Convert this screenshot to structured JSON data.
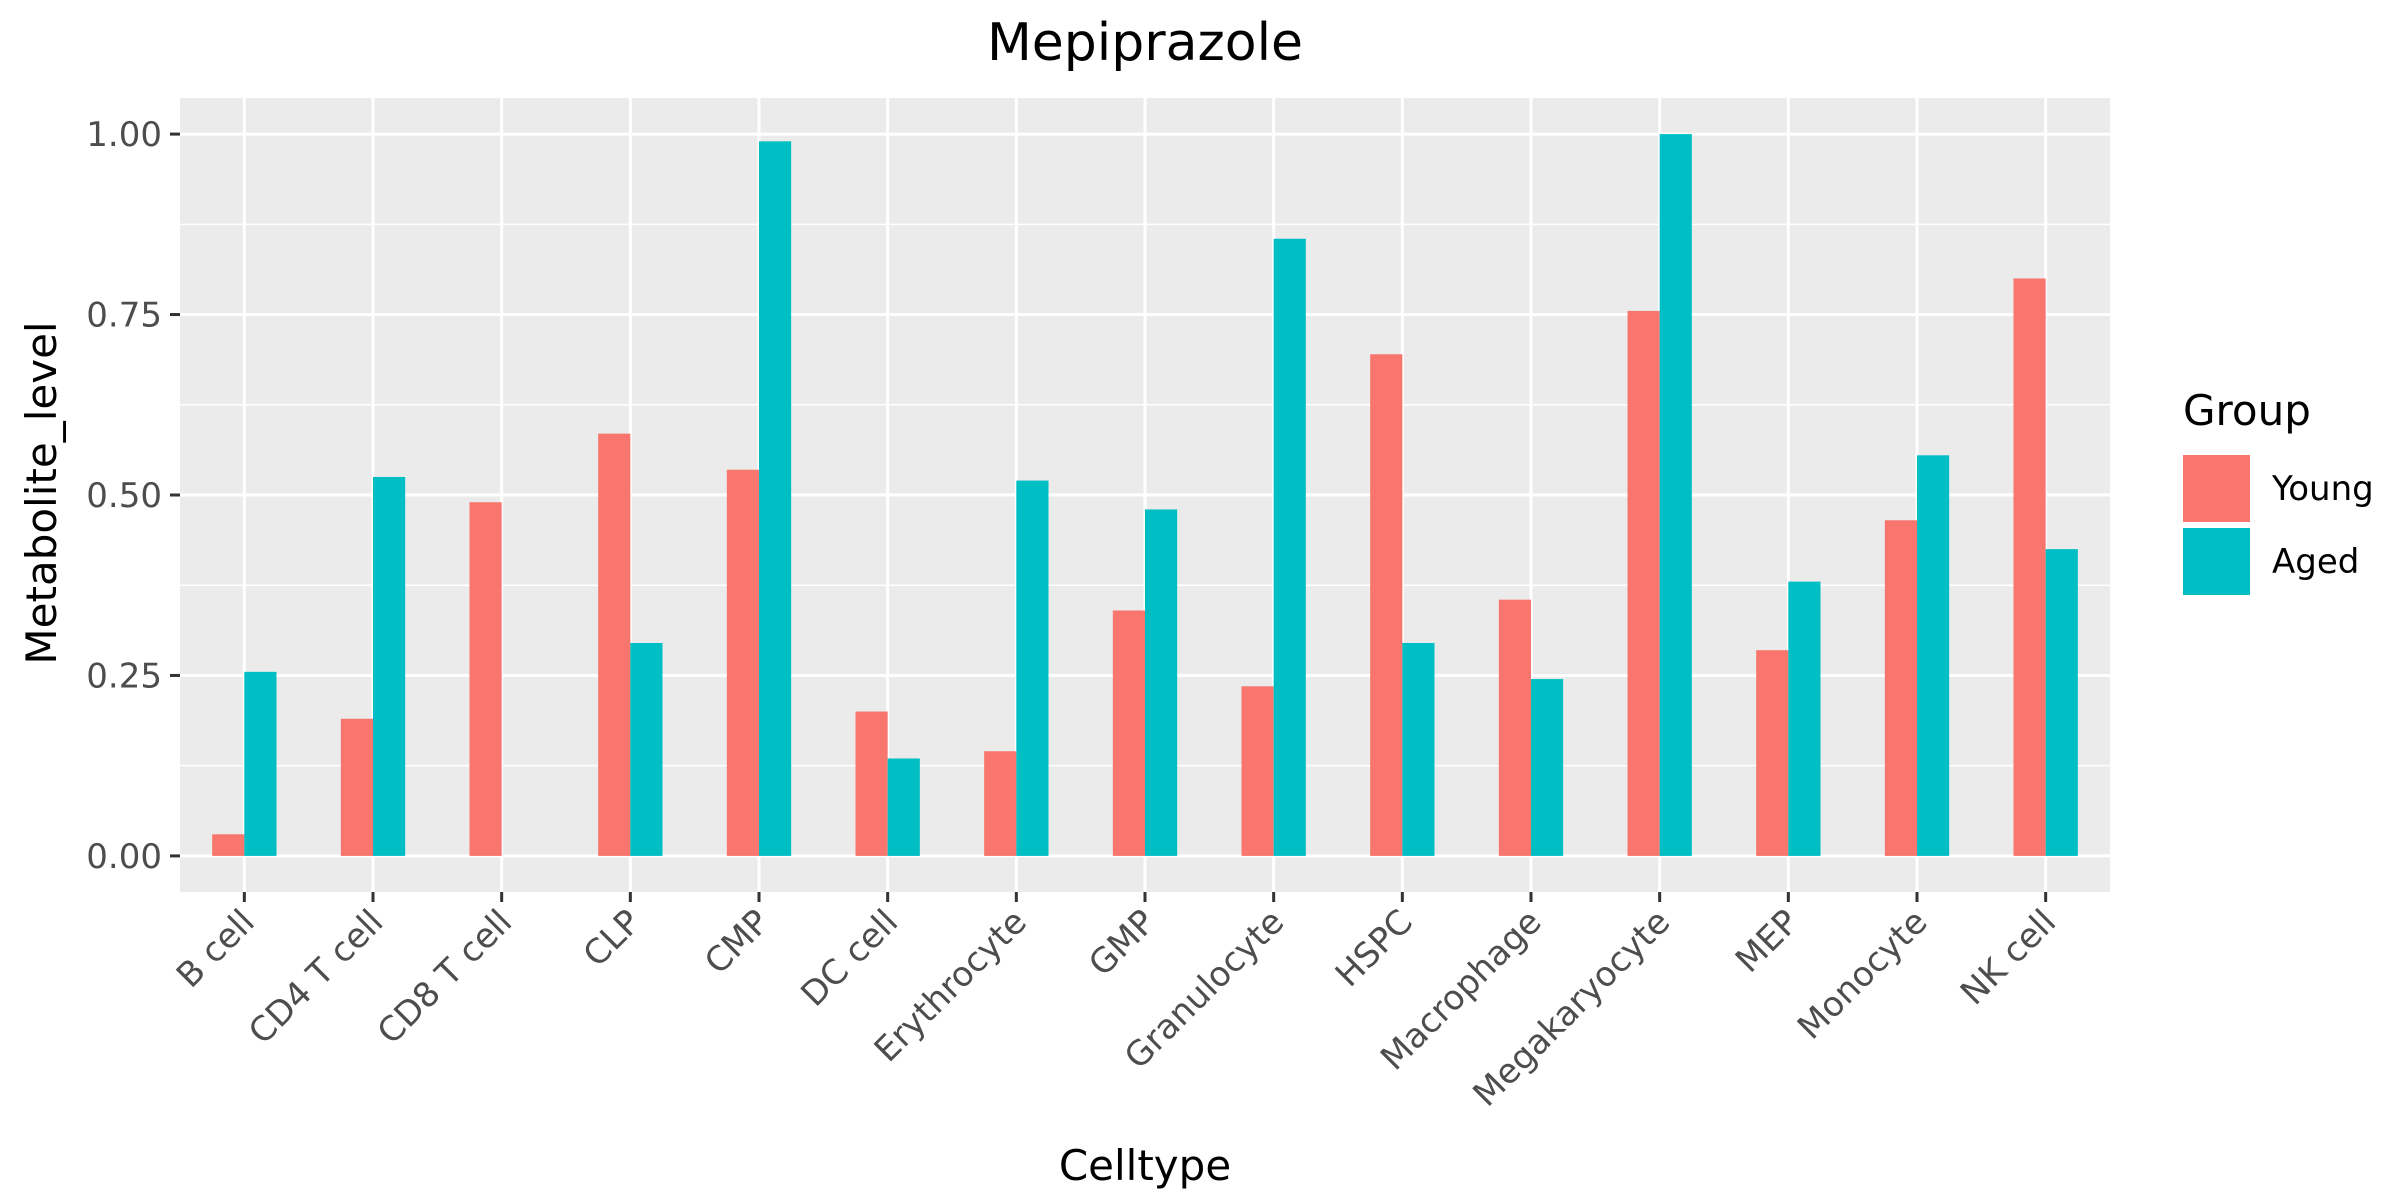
{
  "chart_data": {
    "type": "bar",
    "title": "Mepiprazole",
    "xlabel": "Celltype",
    "ylabel": "Metabolite_level",
    "ylim": [
      -0.05,
      1.05
    ],
    "yticks": [
      0.0,
      0.25,
      0.5,
      0.75,
      1.0
    ],
    "ytick_labels": [
      "0.00",
      "0.25",
      "0.50",
      "0.75",
      "1.00"
    ],
    "grid": true,
    "legend_position": "right",
    "legend_title": "Group",
    "categories": [
      "B cell",
      "CD4 T cell",
      "CD8 T cell",
      "CLP",
      "CMP",
      "DC cell",
      "Erythrocyte",
      "GMP",
      "Granulocyte",
      "HSPC",
      "Macrophage",
      "Megakaryocyte",
      "MEP",
      "Monocyte",
      "NK cell"
    ],
    "series": [
      {
        "name": "Young",
        "color": "#F8766D",
        "values": [
          0.03,
          0.19,
          0.49,
          0.585,
          0.535,
          0.2,
          0.145,
          0.34,
          0.235,
          0.695,
          0.355,
          0.755,
          0.285,
          0.465,
          0.8
        ]
      },
      {
        "name": "Aged",
        "color": "#00BFC4",
        "values": [
          0.255,
          0.525,
          0.0,
          0.295,
          0.99,
          0.135,
          0.52,
          0.48,
          0.855,
          0.295,
          0.245,
          1.0,
          0.38,
          0.555,
          0.425
        ]
      }
    ],
    "panel_background": "#EBEBEB",
    "grid_color": "#FFFFFF"
  }
}
